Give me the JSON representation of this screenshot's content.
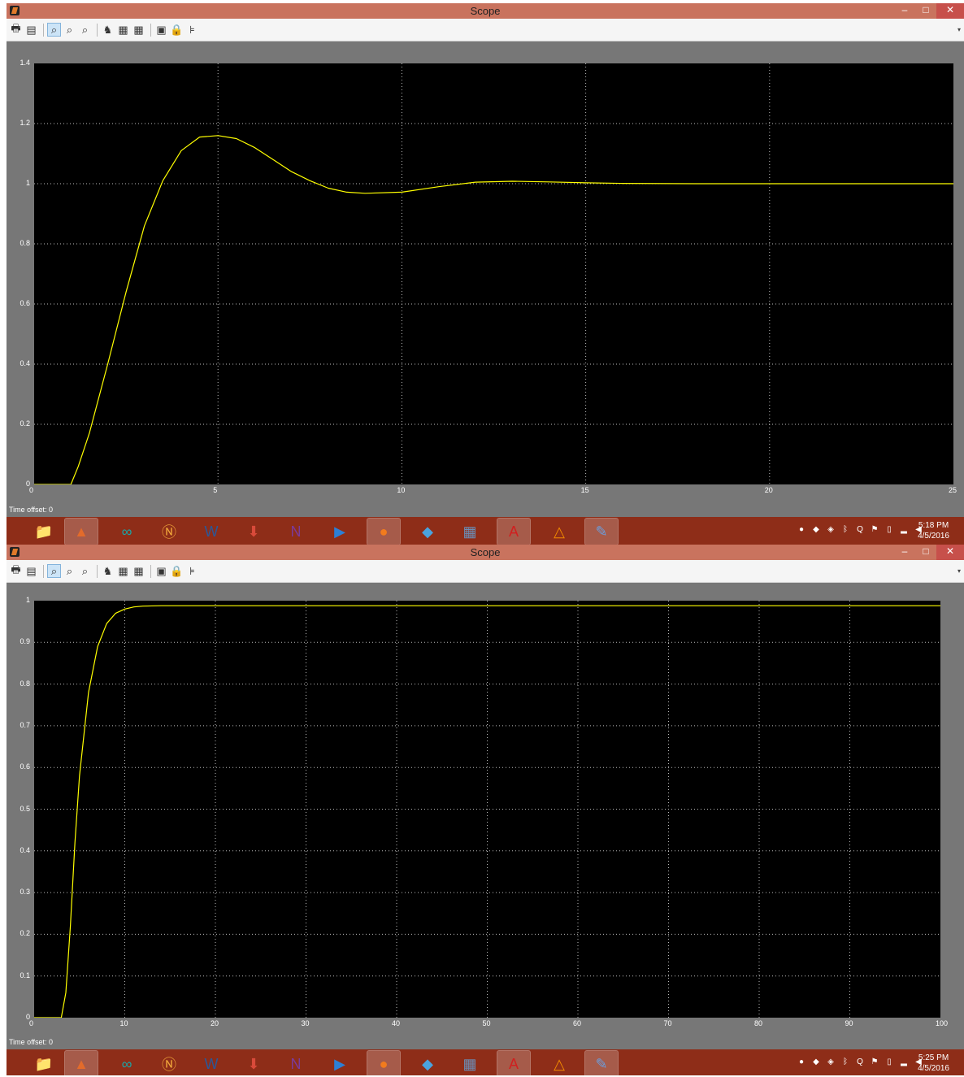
{
  "screens": [
    {
      "window": {
        "title": "Scope",
        "min": "–",
        "max": "□",
        "close": "✕"
      },
      "offset": {
        "label": "Time offset:",
        "value": "0"
      },
      "taskbar": {
        "time": "5:18 PM",
        "date": "4/5/2016"
      },
      "chart_data": {
        "type": "line",
        "xlim": [
          0,
          25
        ],
        "ylim": [
          0,
          1.4
        ],
        "xticks": [
          "0",
          "5",
          "10",
          "15",
          "20",
          "25"
        ],
        "yticks": [
          "0",
          "0.2",
          "0.4",
          "0.6",
          "0.8",
          "1",
          "1.2",
          "1.4"
        ],
        "grid": true,
        "series_color": "#ffff00",
        "series": [
          {
            "x": [
              0,
              1,
              1.2,
              1.5,
              2,
              2.5,
              3,
              3.5,
              4,
              4.5,
              5,
              5.5,
              6,
              6.5,
              7,
              7.5,
              8,
              8.5,
              9,
              10,
              11,
              12,
              13,
              14,
              15,
              16,
              18,
              20,
              25
            ],
            "y": [
              0,
              0,
              0.06,
              0.17,
              0.4,
              0.64,
              0.86,
              1.01,
              1.11,
              1.155,
              1.16,
              1.15,
              1.12,
              1.08,
              1.04,
              1.01,
              0.985,
              0.972,
              0.968,
              0.972,
              0.99,
              1.005,
              1.008,
              1.006,
              1.003,
              1.001,
              1.0,
              1.0,
              1.0
            ]
          }
        ]
      }
    },
    {
      "window": {
        "title": "Scope",
        "min": "–",
        "max": "□",
        "close": "✕"
      },
      "offset": {
        "label": "Time offset:",
        "value": "0"
      },
      "taskbar": {
        "time": "5:25 PM",
        "date": "4/5/2016"
      },
      "chart_data": {
        "type": "line",
        "xlim": [
          0,
          100
        ],
        "ylim": [
          0,
          1
        ],
        "xticks": [
          "0",
          "10",
          "20",
          "30",
          "40",
          "50",
          "60",
          "70",
          "80",
          "90",
          "100"
        ],
        "yticks": [
          "0",
          "0.1",
          "0.2",
          "0.3",
          "0.4",
          "0.5",
          "0.6",
          "0.7",
          "0.8",
          "0.9",
          "1"
        ],
        "grid": true,
        "series_color": "#ffff00",
        "series": [
          {
            "x": [
              0,
              3,
              3.5,
              4,
              4.5,
              5,
              6,
              7,
              8,
              9,
              10,
              11,
              12,
              14,
              20,
              100
            ],
            "y": [
              0,
              0,
              0.06,
              0.22,
              0.42,
              0.58,
              0.78,
              0.89,
              0.945,
              0.97,
              0.98,
              0.985,
              0.987,
              0.988,
              0.988,
              0.988
            ]
          }
        ]
      }
    }
  ],
  "toolbar_icons": [
    "print-icon",
    "params-icon",
    "zoom-icon",
    "zoom-x-icon",
    "zoom-y-icon",
    "autoscale-icon",
    "save-axes-icon",
    "restore-axes-icon",
    "floating-scope-icon",
    "lock-icon",
    "signal-selection-icon"
  ],
  "taskbar_apps": [
    "file-explorer",
    "matlab",
    "arduino",
    "netbeans",
    "word",
    "downloader",
    "onenote",
    "media",
    "firefox",
    "chrome-app",
    "calculator",
    "acrobat",
    "vlc",
    "paint"
  ],
  "tray_icons": [
    "norton-icon",
    "shield-icon",
    "sync-icon",
    "bluetooth-icon",
    "q-icon",
    "flag-icon",
    "battery-icon",
    "signal-icon",
    "volume-icon"
  ]
}
